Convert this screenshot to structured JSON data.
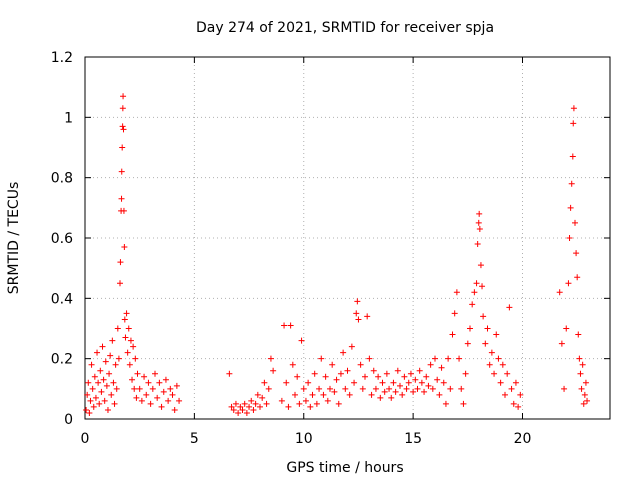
{
  "chart_data": {
    "type": "scatter",
    "title": "Day 274 of 2021, SRMTID for receiver spja",
    "xlabel": "GPS time / hours",
    "ylabel": "SRMTID / TECUs",
    "xlim": [
      0,
      24
    ],
    "ylim": [
      0,
      1.2
    ],
    "x_ticks": [
      0,
      5,
      10,
      15,
      20
    ],
    "x_tick_labels": [
      "0",
      "5",
      "10",
      "15",
      "20"
    ],
    "y_ticks": [
      0,
      0.2,
      0.4,
      0.6,
      0.8,
      1,
      1.2
    ],
    "y_tick_labels": [
      "0",
      "0.2",
      "0.4",
      "0.6",
      "0.8",
      "1",
      "1.2"
    ],
    "grid": true,
    "marker": "+",
    "series_color": "#ff0000",
    "series": [
      {
        "name": "SRMTID",
        "points": [
          [
            0.05,
            0.03
          ],
          [
            0.1,
            0.08
          ],
          [
            0.15,
            0.12
          ],
          [
            0.2,
            0.02
          ],
          [
            0.25,
            0.06
          ],
          [
            0.3,
            0.18
          ],
          [
            0.35,
            0.1
          ],
          [
            0.4,
            0.04
          ],
          [
            0.45,
            0.14
          ],
          [
            0.5,
            0.07
          ],
          [
            0.55,
            0.22
          ],
          [
            0.6,
            0.12
          ],
          [
            0.65,
            0.05
          ],
          [
            0.7,
            0.16
          ],
          [
            0.75,
            0.09
          ],
          [
            0.8,
            0.24
          ],
          [
            0.85,
            0.13
          ],
          [
            0.9,
            0.06
          ],
          [
            0.95,
            0.19
          ],
          [
            1.0,
            0.11
          ],
          [
            1.05,
            0.03
          ],
          [
            1.1,
            0.15
          ],
          [
            1.15,
            0.21
          ],
          [
            1.2,
            0.08
          ],
          [
            1.25,
            0.26
          ],
          [
            1.3,
            0.12
          ],
          [
            1.35,
            0.05
          ],
          [
            1.4,
            0.18
          ],
          [
            1.45,
            0.1
          ],
          [
            1.5,
            0.3
          ],
          [
            1.55,
            0.2
          ],
          [
            1.6,
            0.45
          ],
          [
            1.62,
            0.52
          ],
          [
            1.65,
            0.69
          ],
          [
            1.67,
            0.73
          ],
          [
            1.68,
            0.82
          ],
          [
            1.7,
            0.9
          ],
          [
            1.72,
            0.97
          ],
          [
            1.73,
            1.03
          ],
          [
            1.74,
            1.07
          ],
          [
            1.76,
            0.96
          ],
          [
            1.78,
            0.69
          ],
          [
            1.8,
            0.57
          ],
          [
            1.82,
            0.33
          ],
          [
            1.85,
            0.27
          ],
          [
            1.9,
            0.35
          ],
          [
            1.95,
            0.22
          ],
          [
            2.0,
            0.3
          ],
          [
            2.05,
            0.18
          ],
          [
            2.1,
            0.26
          ],
          [
            2.15,
            0.13
          ],
          [
            2.2,
            0.24
          ],
          [
            2.25,
            0.1
          ],
          [
            2.3,
            0.2
          ],
          [
            2.35,
            0.07
          ],
          [
            2.4,
            0.15
          ],
          [
            2.5,
            0.1
          ],
          [
            2.6,
            0.06
          ],
          [
            2.7,
            0.14
          ],
          [
            2.8,
            0.08
          ],
          [
            2.9,
            0.12
          ],
          [
            3.0,
            0.05
          ],
          [
            3.1,
            0.1
          ],
          [
            3.2,
            0.15
          ],
          [
            3.3,
            0.07
          ],
          [
            3.4,
            0.12
          ],
          [
            3.5,
            0.04
          ],
          [
            3.6,
            0.09
          ],
          [
            3.7,
            0.13
          ],
          [
            3.8,
            0.06
          ],
          [
            3.9,
            0.1
          ],
          [
            4.0,
            0.08
          ],
          [
            4.1,
            0.03
          ],
          [
            4.2,
            0.11
          ],
          [
            4.3,
            0.06
          ],
          [
            6.6,
            0.15
          ],
          [
            6.7,
            0.04
          ],
          [
            6.8,
            0.03
          ],
          [
            6.9,
            0.05
          ],
          [
            7.0,
            0.02
          ],
          [
            7.1,
            0.04
          ],
          [
            7.2,
            0.03
          ],
          [
            7.3,
            0.05
          ],
          [
            7.4,
            0.02
          ],
          [
            7.5,
            0.04
          ],
          [
            7.6,
            0.06
          ],
          [
            7.7,
            0.03
          ],
          [
            7.8,
            0.05
          ],
          [
            7.9,
            0.08
          ],
          [
            8.0,
            0.04
          ],
          [
            8.1,
            0.07
          ],
          [
            8.2,
            0.12
          ],
          [
            8.3,
            0.05
          ],
          [
            8.4,
            0.1
          ],
          [
            8.5,
            0.2
          ],
          [
            8.6,
            0.16
          ],
          [
            9.0,
            0.06
          ],
          [
            9.1,
            0.31
          ],
          [
            9.2,
            0.12
          ],
          [
            9.3,
            0.04
          ],
          [
            9.4,
            0.31
          ],
          [
            9.5,
            0.18
          ],
          [
            9.6,
            0.08
          ],
          [
            9.7,
            0.14
          ],
          [
            9.8,
            0.05
          ],
          [
            9.9,
            0.26
          ],
          [
            10.0,
            0.1
          ],
          [
            10.1,
            0.06
          ],
          [
            10.2,
            0.12
          ],
          [
            10.3,
            0.04
          ],
          [
            10.4,
            0.08
          ],
          [
            10.5,
            0.15
          ],
          [
            10.6,
            0.05
          ],
          [
            10.7,
            0.1
          ],
          [
            10.8,
            0.2
          ],
          [
            10.9,
            0.08
          ],
          [
            11.0,
            0.14
          ],
          [
            11.1,
            0.06
          ],
          [
            11.2,
            0.1
          ],
          [
            11.3,
            0.18
          ],
          [
            11.4,
            0.09
          ],
          [
            11.5,
            0.13
          ],
          [
            11.6,
            0.05
          ],
          [
            11.7,
            0.15
          ],
          [
            11.8,
            0.22
          ],
          [
            11.9,
            0.1
          ],
          [
            12.0,
            0.16
          ],
          [
            12.1,
            0.08
          ],
          [
            12.2,
            0.24
          ],
          [
            12.3,
            0.12
          ],
          [
            12.4,
            0.35
          ],
          [
            12.45,
            0.39
          ],
          [
            12.5,
            0.33
          ],
          [
            12.6,
            0.18
          ],
          [
            12.7,
            0.1
          ],
          [
            12.8,
            0.14
          ],
          [
            12.9,
            0.34
          ],
          [
            13.0,
            0.2
          ],
          [
            13.1,
            0.08
          ],
          [
            13.2,
            0.16
          ],
          [
            13.3,
            0.1
          ],
          [
            13.4,
            0.14
          ],
          [
            13.5,
            0.07
          ],
          [
            13.6,
            0.12
          ],
          [
            13.7,
            0.09
          ],
          [
            13.8,
            0.15
          ],
          [
            13.9,
            0.1
          ],
          [
            14.0,
            0.07
          ],
          [
            14.1,
            0.12
          ],
          [
            14.2,
            0.09
          ],
          [
            14.3,
            0.16
          ],
          [
            14.4,
            0.11
          ],
          [
            14.5,
            0.08
          ],
          [
            14.6,
            0.14
          ],
          [
            14.7,
            0.1
          ],
          [
            14.8,
            0.12
          ],
          [
            14.9,
            0.15
          ],
          [
            15.0,
            0.09
          ],
          [
            15.1,
            0.13
          ],
          [
            15.2,
            0.1
          ],
          [
            15.3,
            0.16
          ],
          [
            15.4,
            0.12
          ],
          [
            15.5,
            0.09
          ],
          [
            15.6,
            0.14
          ],
          [
            15.7,
            0.11
          ],
          [
            15.8,
            0.18
          ],
          [
            15.9,
            0.1
          ],
          [
            16.0,
            0.2
          ],
          [
            16.1,
            0.13
          ],
          [
            16.2,
            0.08
          ],
          [
            16.3,
            0.17
          ],
          [
            16.4,
            0.12
          ],
          [
            16.5,
            0.05
          ],
          [
            16.6,
            0.2
          ],
          [
            16.7,
            0.1
          ],
          [
            16.8,
            0.28
          ],
          [
            16.9,
            0.35
          ],
          [
            17.0,
            0.42
          ],
          [
            17.1,
            0.2
          ],
          [
            17.2,
            0.1
          ],
          [
            17.3,
            0.05
          ],
          [
            17.4,
            0.15
          ],
          [
            17.5,
            0.25
          ],
          [
            17.6,
            0.3
          ],
          [
            17.7,
            0.38
          ],
          [
            17.8,
            0.42
          ],
          [
            17.9,
            0.45
          ],
          [
            17.95,
            0.58
          ],
          [
            18.0,
            0.65
          ],
          [
            18.02,
            0.68
          ],
          [
            18.05,
            0.63
          ],
          [
            18.1,
            0.51
          ],
          [
            18.15,
            0.44
          ],
          [
            18.2,
            0.34
          ],
          [
            18.3,
            0.25
          ],
          [
            18.4,
            0.3
          ],
          [
            18.5,
            0.18
          ],
          [
            18.6,
            0.22
          ],
          [
            18.7,
            0.15
          ],
          [
            18.8,
            0.28
          ],
          [
            18.9,
            0.2
          ],
          [
            19.0,
            0.12
          ],
          [
            19.1,
            0.18
          ],
          [
            19.2,
            0.08
          ],
          [
            19.3,
            0.15
          ],
          [
            19.4,
            0.37
          ],
          [
            19.5,
            0.1
          ],
          [
            19.6,
            0.05
          ],
          [
            19.7,
            0.12
          ],
          [
            19.8,
            0.04
          ],
          [
            19.9,
            0.08
          ],
          [
            21.7,
            0.42
          ],
          [
            21.8,
            0.25
          ],
          [
            21.9,
            0.1
          ],
          [
            22.0,
            0.3
          ],
          [
            22.1,
            0.45
          ],
          [
            22.15,
            0.6
          ],
          [
            22.2,
            0.7
          ],
          [
            22.25,
            0.78
          ],
          [
            22.3,
            0.87
          ],
          [
            22.32,
            0.98
          ],
          [
            22.35,
            1.03
          ],
          [
            22.4,
            0.65
          ],
          [
            22.45,
            0.55
          ],
          [
            22.5,
            0.47
          ],
          [
            22.55,
            0.28
          ],
          [
            22.6,
            0.2
          ],
          [
            22.65,
            0.15
          ],
          [
            22.7,
            0.1
          ],
          [
            22.75,
            0.18
          ],
          [
            22.8,
            0.05
          ],
          [
            22.85,
            0.08
          ],
          [
            22.9,
            0.12
          ],
          [
            22.95,
            0.06
          ]
        ]
      }
    ]
  }
}
